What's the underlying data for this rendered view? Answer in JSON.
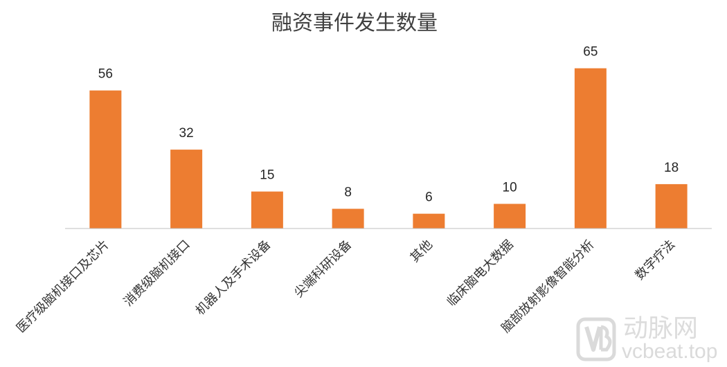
{
  "chart_data": {
    "type": "bar",
    "title": "融资事件发生数量",
    "categories": [
      "医疗级脑机接口及芯片",
      "消费级脑机接口",
      "机器人及手术设备",
      "尖端科研设备",
      "其他",
      "临床脑电大数据",
      "脑部放射影像智能分析",
      "数字疗法"
    ],
    "values": [
      56,
      32,
      15,
      8,
      6,
      10,
      65,
      18
    ],
    "ylim": [
      0,
      75
    ],
    "grid": false,
    "legend": false,
    "bar_color": "#ed7d31",
    "axis_color": "#bfbfbf"
  },
  "watermark": {
    "brand_cn": "动脉网",
    "site": "vcbeat.top",
    "logo_icon": "vb-logo-icon",
    "color": "#d6d6d6"
  }
}
